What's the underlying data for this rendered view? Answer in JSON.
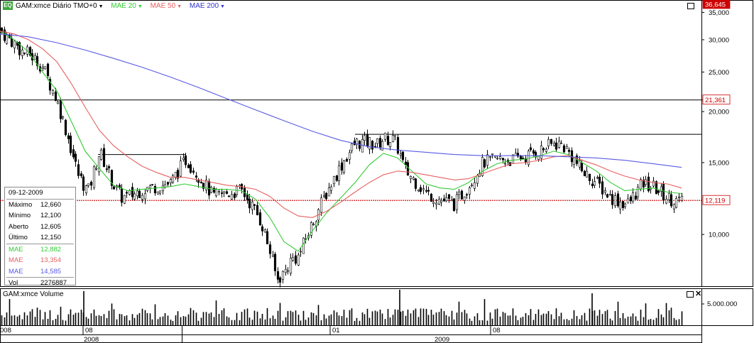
{
  "header": {
    "symbol_title": "GAM:xmce Diário TMO+0",
    "ma20_label": "MAE 20",
    "ma50_label": "MAE 50",
    "ma200_label": "MAE 200",
    "logo_text": "EQ"
  },
  "colors": {
    "ma20": "#33cc33",
    "ma50": "#e86060",
    "ma200": "#5a5ae6",
    "candle": "#000000",
    "price_line": "#cc0000"
  },
  "info_box": {
    "date": "09-12-2009",
    "rows": [
      {
        "label": "Máximo",
        "value": "12,660",
        "color": "#000000"
      },
      {
        "label": "Mínimo",
        "value": "12,100",
        "color": "#000000"
      },
      {
        "label": "Aberto",
        "value": "12,605",
        "color": "#000000"
      },
      {
        "label": "Último",
        "value": "12,150",
        "color": "#000000"
      },
      {
        "label": "MAE",
        "value": "12,882",
        "color": "#33cc33"
      },
      {
        "label": "MAE",
        "value": "13,354",
        "color": "#e86060"
      },
      {
        "label": "MAE",
        "value": "14,585",
        "color": "#5a5ae6"
      },
      {
        "label": "Vol",
        "value": "2276887",
        "color": "#000000"
      }
    ]
  },
  "volume_panel": {
    "title": "GAM:xmce Volume",
    "axis_label": "5.000.000"
  },
  "chart_data": {
    "type": "candlestick",
    "y_scale": "log",
    "ylim": [
      7.5,
      36.645
    ],
    "y_ticks": [
      "35,000",
      "30,000",
      "25,000",
      "20,000",
      "15,000",
      "10,000"
    ],
    "y_tick_values": [
      35,
      30,
      25,
      20,
      15,
      10
    ],
    "price_tags": [
      {
        "label": "36,645",
        "value": 36.645,
        "style": "dark"
      },
      {
        "label": "21,361",
        "value": 21.361,
        "style": "red"
      },
      {
        "label": "12,119",
        "value": 12.119,
        "style": "red"
      }
    ],
    "horizontal_lines": [
      21.361,
      12.119
    ],
    "x_month_labels": [
      "08",
      "01",
      "08"
    ],
    "x_year_labels": [
      "2008",
      "2009"
    ],
    "x_left_edge_label": "008",
    "series": [
      {
        "name": "MAE 20",
        "points": [
          [
            0,
            31.5
          ],
          [
            20,
            30
          ],
          [
            40,
            28
          ],
          [
            60,
            25
          ],
          [
            80,
            22.5
          ],
          [
            100,
            19
          ],
          [
            120,
            16
          ],
          [
            140,
            14.5
          ],
          [
            160,
            13.2
          ],
          [
            180,
            12.8
          ],
          [
            200,
            12.9
          ],
          [
            220,
            13.0
          ],
          [
            240,
            13.1
          ],
          [
            260,
            13.3
          ],
          [
            280,
            13.1
          ],
          [
            300,
            12.9
          ],
          [
            320,
            12.9
          ],
          [
            340,
            12.8
          ],
          [
            360,
            12.2
          ],
          [
            380,
            11
          ],
          [
            400,
            9.6
          ],
          [
            420,
            9.1
          ],
          [
            440,
            10.2
          ],
          [
            460,
            11.3
          ],
          [
            480,
            12.3
          ],
          [
            500,
            13.4
          ],
          [
            520,
            14.8
          ],
          [
            540,
            15.8
          ],
          [
            560,
            15.4
          ],
          [
            580,
            14.3
          ],
          [
            600,
            13.3
          ],
          [
            620,
            13.0
          ],
          [
            640,
            12.9
          ],
          [
            660,
            13.4
          ],
          [
            680,
            14.3
          ],
          [
            700,
            14.9
          ],
          [
            720,
            15.2
          ],
          [
            740,
            15.3
          ],
          [
            760,
            15.6
          ],
          [
            780,
            16.0
          ],
          [
            800,
            15.7
          ],
          [
            820,
            15.0
          ],
          [
            840,
            14.3
          ],
          [
            860,
            13.4
          ],
          [
            880,
            12.8
          ],
          [
            900,
            12.9
          ],
          [
            920,
            13.0
          ],
          [
            940,
            12.7
          ],
          [
            960,
            12.6
          ]
        ]
      },
      {
        "name": "MAE 50",
        "points": [
          [
            0,
            31.5
          ],
          [
            20,
            31
          ],
          [
            40,
            30
          ],
          [
            60,
            28.5
          ],
          [
            80,
            26.5
          ],
          [
            100,
            23.5
          ],
          [
            120,
            20.5
          ],
          [
            140,
            18
          ],
          [
            160,
            16.5
          ],
          [
            180,
            15.5
          ],
          [
            200,
            14.7
          ],
          [
            220,
            14.2
          ],
          [
            240,
            13.8
          ],
          [
            260,
            13.8
          ],
          [
            280,
            13.6
          ],
          [
            300,
            13.4
          ],
          [
            320,
            13.2
          ],
          [
            340,
            13.1
          ],
          [
            360,
            12.9
          ],
          [
            380,
            12.4
          ],
          [
            400,
            11.6
          ],
          [
            420,
            11.1
          ],
          [
            440,
            11.0
          ],
          [
            460,
            11.4
          ],
          [
            480,
            12.0
          ],
          [
            500,
            12.7
          ],
          [
            520,
            13.4
          ],
          [
            540,
            14.0
          ],
          [
            560,
            14.3
          ],
          [
            580,
            14.2
          ],
          [
            600,
            14.0
          ],
          [
            620,
            13.8
          ],
          [
            640,
            13.6
          ],
          [
            660,
            13.7
          ],
          [
            680,
            14.1
          ],
          [
            700,
            14.5
          ],
          [
            720,
            14.9
          ],
          [
            740,
            15.0
          ],
          [
            760,
            15.2
          ],
          [
            780,
            15.5
          ],
          [
            800,
            15.6
          ],
          [
            820,
            15.2
          ],
          [
            840,
            14.8
          ],
          [
            860,
            14.3
          ],
          [
            880,
            13.9
          ],
          [
            900,
            13.6
          ],
          [
            920,
            13.4
          ],
          [
            940,
            13.3
          ],
          [
            960,
            13.0
          ]
        ]
      },
      {
        "name": "MAE 200",
        "points": [
          [
            0,
            31.0
          ],
          [
            40,
            30.5
          ],
          [
            80,
            29.5
          ],
          [
            120,
            28.3
          ],
          [
            160,
            27.0
          ],
          [
            200,
            25.7
          ],
          [
            240,
            24.3
          ],
          [
            280,
            22.9
          ],
          [
            320,
            21.5
          ],
          [
            360,
            20.2
          ],
          [
            400,
            19.0
          ],
          [
            440,
            17.9
          ],
          [
            480,
            17.0
          ],
          [
            520,
            16.4
          ],
          [
            560,
            16.1
          ],
          [
            600,
            15.9
          ],
          [
            640,
            15.7
          ],
          [
            680,
            15.6
          ],
          [
            720,
            15.6
          ],
          [
            760,
            15.6
          ],
          [
            800,
            15.5
          ],
          [
            840,
            15.4
          ],
          [
            880,
            15.2
          ],
          [
            920,
            14.9
          ],
          [
            960,
            14.6
          ]
        ]
      }
    ],
    "resistance_lines": [
      {
        "x1": 138,
        "x2": 262,
        "y1": 15.7,
        "y2": 15.7
      },
      {
        "x1": 500,
        "x2": 988,
        "y1": 17.6,
        "y2": 17.6
      }
    ]
  }
}
